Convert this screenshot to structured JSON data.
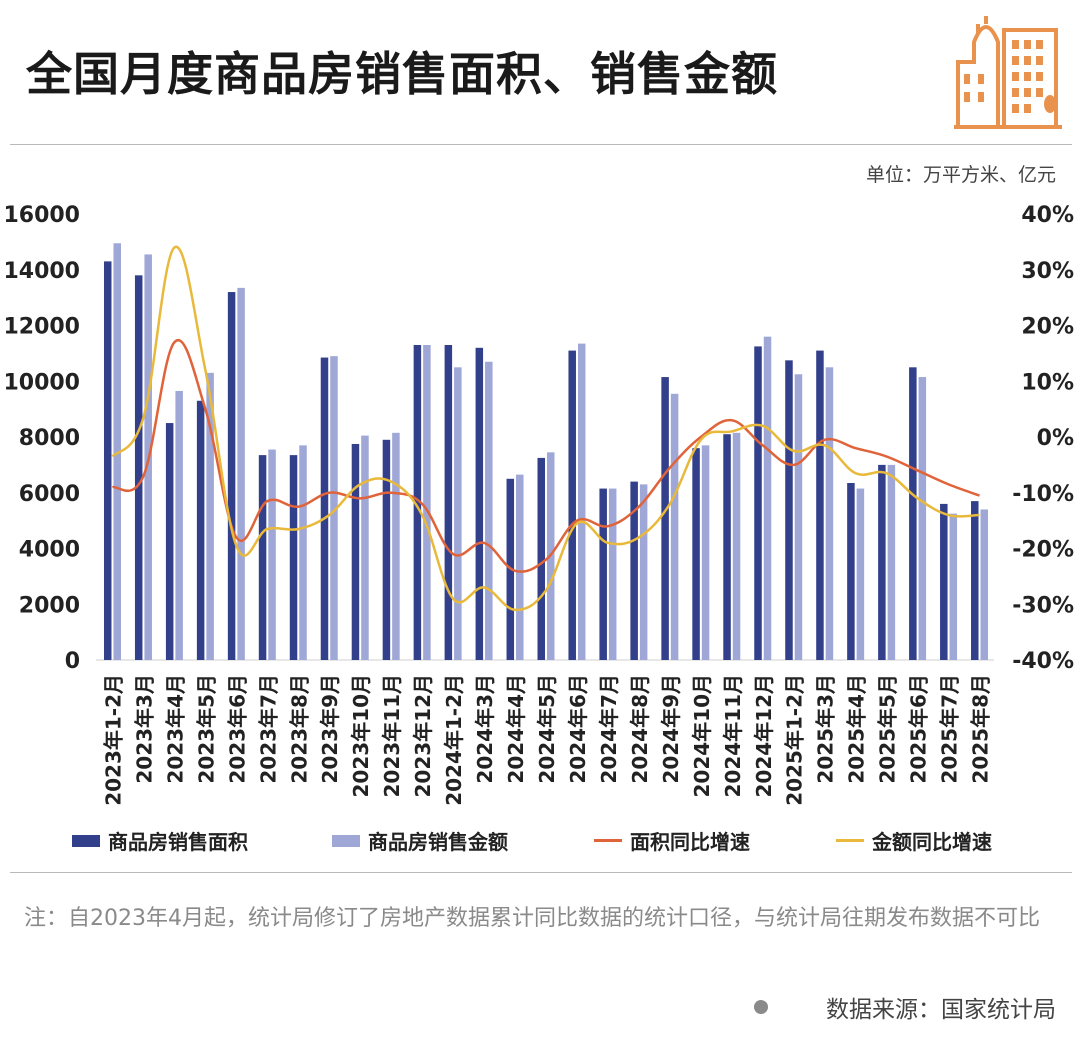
{
  "title": "全国月度商品房销售面积、销售金额",
  "unit_label": "单位：万平方米、亿元",
  "note": "注：自2023年4月起，统计局修订了房地产数据累计同比数据的统计口径，与统计局往期发布数据不可比",
  "source": "数据来源：国家统计局",
  "colors": {
    "area_bar": "#323f8a",
    "amount_bar": "#9ea7d6",
    "area_yoy": "#e0633a",
    "amount_yoy": "#e8b93a",
    "logo": "#e9924e"
  },
  "chart_data": {
    "type": "bar",
    "categories": [
      "2023年1-2月",
      "2023年3月",
      "2023年4月",
      "2023年5月",
      "2023年6月",
      "2023年7月",
      "2023年8月",
      "2023年9月",
      "2023年10月",
      "2023年11月",
      "2023年12月",
      "2024年1-2月",
      "2024年3月",
      "2024年4月",
      "2024年5月",
      "2024年6月",
      "2024年7月",
      "2024年8月",
      "2024年9月",
      "2024年10月",
      "2024年11月",
      "2024年12月",
      "2025年1-2月",
      "2025年3月",
      "2025年4月",
      "2025年5月",
      "2025年6月",
      "2025年7月",
      "2025年8月"
    ],
    "y_left": {
      "ylim": [
        0,
        16000
      ],
      "ticks": [
        "0",
        "2000",
        "4000",
        "6000",
        "8000",
        "10000",
        "12000",
        "14000",
        "16000"
      ]
    },
    "y_right": {
      "ylim": [
        -40,
        40
      ],
      "ticks": [
        "-40%",
        "-30%",
        "-20%",
        "-10%",
        "0%",
        "10%",
        "20%",
        "30%",
        "40%"
      ]
    },
    "series": [
      {
        "name": "商品房销售面积",
        "kind": "bar",
        "axis": "left",
        "values": [
          14300,
          13800,
          8500,
          9300,
          13200,
          7350,
          7350,
          10850,
          7750,
          7900,
          11300,
          11300,
          11200,
          6500,
          7250,
          11100,
          6150,
          6400,
          10150,
          7600,
          8100,
          11250,
          10750,
          11100,
          6350,
          7000,
          10500,
          5600,
          5700
        ]
      },
      {
        "name": "商品房销售金额",
        "kind": "bar",
        "axis": "left",
        "values": [
          14950,
          14550,
          9650,
          10300,
          13350,
          7550,
          7700,
          10900,
          8050,
          8150,
          11300,
          10500,
          10700,
          6650,
          7450,
          11350,
          6150,
          6300,
          9550,
          7700,
          8150,
          11600,
          10250,
          10500,
          6150,
          7000,
          10150,
          5250,
          5400
        ]
      },
      {
        "name": "面积同比增速",
        "kind": "line",
        "axis": "right",
        "values": [
          -9,
          -7,
          17,
          5,
          -18,
          -11.5,
          -12.5,
          -10,
          -11,
          -10,
          -12,
          -21,
          -19,
          -24,
          -22,
          -15,
          -16,
          -12.5,
          -5.5,
          0,
          3,
          -1.5,
          -5,
          -0.5,
          -2,
          -3.5,
          -6,
          -8.5,
          -10.5
        ]
      },
      {
        "name": "金额同比增速",
        "kind": "line",
        "axis": "right",
        "values": [
          -3.5,
          3.5,
          34,
          12,
          -19.5,
          -16.5,
          -16.5,
          -14,
          -8.5,
          -8,
          -14,
          -29,
          -27,
          -31,
          -27.5,
          -15.5,
          -19,
          -18,
          -12,
          -0.5,
          1,
          2,
          -2.5,
          -1.5,
          -6.5,
          -6.5,
          -11,
          -14,
          -14
        ]
      }
    ]
  }
}
